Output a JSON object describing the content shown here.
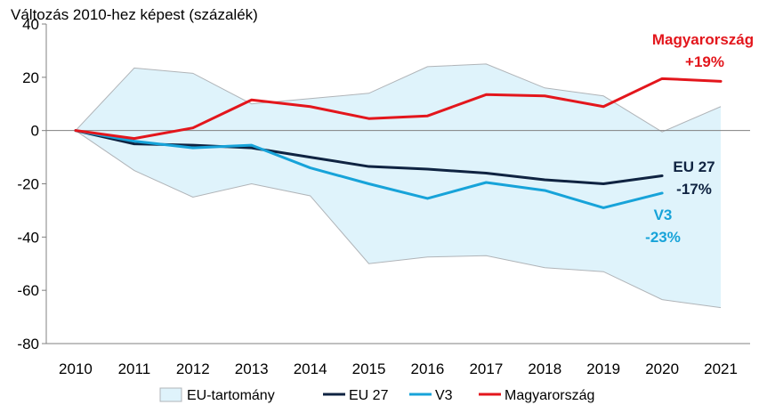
{
  "chart_data": {
    "type": "line",
    "title": "Változás 2010-hez képest (százalék)",
    "xlabel": "",
    "ylabel": "",
    "ylim": [
      -80,
      40
    ],
    "yticks": [
      40,
      20,
      0,
      -20,
      -40,
      -60,
      -80
    ],
    "categories": [
      "2010",
      "2011",
      "2012",
      "2013",
      "2014",
      "2015",
      "2016",
      "2017",
      "2018",
      "2019",
      "2020",
      "2021"
    ],
    "band": {
      "name": "EU-tartomány",
      "upper": [
        0,
        23.5,
        21.5,
        10,
        12,
        14,
        24,
        25,
        16,
        13,
        -0.5,
        9
      ],
      "lower": [
        0,
        -15,
        -25,
        -20,
        -24.5,
        -50,
        -47.5,
        -47,
        -51.5,
        -53,
        -63.5,
        -66.5
      ],
      "fill": "#dff3fb",
      "stroke": "#b0b4b8"
    },
    "series": [
      {
        "name": "EU 27",
        "color": "#0f2341",
        "values": [
          0,
          -5,
          -5.5,
          -6.5,
          -10,
          -13.5,
          -14.5,
          -16,
          -18.5,
          -20,
          -17,
          null
        ]
      },
      {
        "name": "V3",
        "color": "#17a3d9",
        "values": [
          0,
          -4,
          -6.5,
          -5.5,
          -14,
          -20,
          -25.5,
          -19.5,
          -22.5,
          -29,
          -23.5,
          null
        ]
      },
      {
        "name": "Magyarország",
        "color": "#e3161c",
        "values": [
          0,
          -3,
          1,
          11.5,
          9,
          4.5,
          5.5,
          13.5,
          13,
          9,
          19.5,
          18.5
        ]
      }
    ],
    "annotations": {
      "hu_name": "Magyarország",
      "hu_value": "+19%",
      "eu_name": "EU 27",
      "eu_value": "-17%",
      "v3_name": "V3",
      "v3_value": "-23%"
    },
    "legend_position": "bottom"
  }
}
